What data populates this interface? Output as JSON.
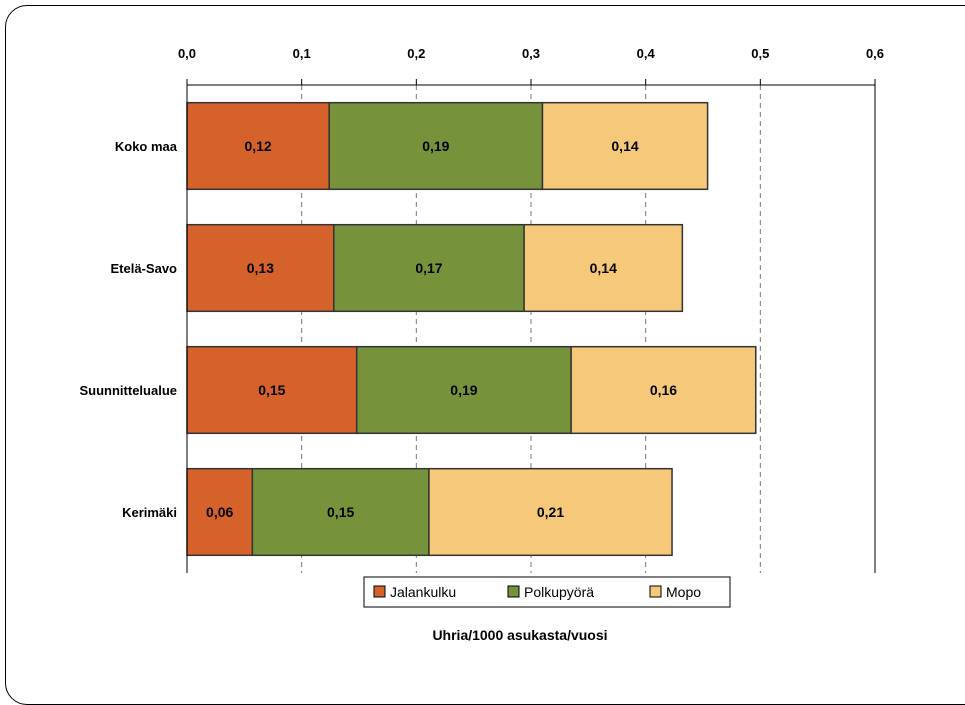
{
  "chart_data": {
    "type": "bar",
    "orientation": "horizontal",
    "stacked": true,
    "categories": [
      "Koko maa",
      "Etelä-Savo",
      "Suunnittelualue",
      "Kerimäki"
    ],
    "series": [
      {
        "name": "Jalankulku",
        "color": "#d4622a",
        "values": [
          0.124,
          0.128,
          0.148,
          0.057
        ],
        "labels": [
          "0,12",
          "0,13",
          "0,15",
          "0,06"
        ]
      },
      {
        "name": "Polkupyörä",
        "color": "#76933c",
        "values": [
          0.186,
          0.166,
          0.187,
          0.154
        ],
        "labels": [
          "0,19",
          "0,17",
          "0,19",
          "0,15"
        ]
      },
      {
        "name": "Mopo",
        "color": "#f6c97a",
        "values": [
          0.144,
          0.138,
          0.161,
          0.212
        ],
        "labels": [
          "0,14",
          "0,14",
          "0,16",
          "0,21"
        ]
      }
    ],
    "xlim": [
      0,
      0.6
    ],
    "xticks": [
      0,
      0.1,
      0.2,
      0.3,
      0.4,
      0.5,
      0.6
    ],
    "xtick_labels": [
      "0,0",
      "0,1",
      "0,2",
      "0,3",
      "0,4",
      "0,5",
      "0,6"
    ],
    "xlabel": "Uhria/1000 asukasta/vuosi",
    "axis_position": "top",
    "grid": "vertical-dashed",
    "legend_position": "bottom"
  }
}
